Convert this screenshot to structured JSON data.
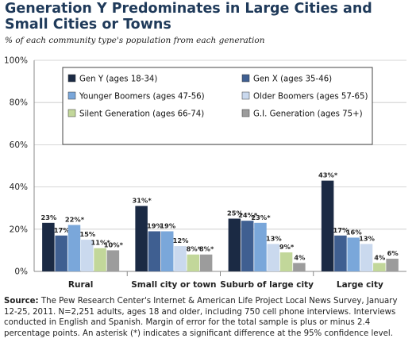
{
  "title": "Generation Y Predominates in Large Cities and Small Cities or Towns",
  "subtitle": "% of each community type's population from each generation",
  "source_label": "Source:",
  "source_text": "The Pew Research Center's Internet & American Life Project Local News Survey, January 12-25, 2011. N=2,251 adults, ages 18 and older, including 750 cell phone interviews. Interviews conducted in English and Spanish. Margin of error for the total sample is plus or minus 2.4 percentage points.  An asterisk (*) indicates a significant difference at the 95% confidence level.",
  "chart_data": {
    "type": "bar",
    "title": "Generation Y Predominates in Large Cities and Small Cities or Towns",
    "subtitle": "% of each community type's population from each generation",
    "categories": [
      "Rural",
      "Small city or town",
      "Suburb of large city",
      "Large city"
    ],
    "yticks": [
      "0%",
      "20%",
      "40%",
      "60%",
      "80%",
      "100%"
    ],
    "ylim": [
      0,
      100
    ],
    "grid": true,
    "legend_position": "top",
    "series": [
      {
        "name": "Gen Y (ages 18-34)",
        "color": "#1b2a44",
        "values": [
          23,
          31,
          25,
          43
        ],
        "labels": [
          "23%",
          "31%*",
          "25%",
          "43%*"
        ]
      },
      {
        "name": "Gen X (ages 35-46)",
        "color": "#3f5f91",
        "values": [
          17,
          19,
          24,
          17
        ],
        "labels": [
          "17%",
          "19%",
          "24%*",
          "17%"
        ]
      },
      {
        "name": "Younger Boomers (ages 47-56)",
        "color": "#7aa7da",
        "values": [
          22,
          19,
          23,
          16
        ],
        "labels": [
          "22%*",
          "19%",
          "23%*",
          "16%"
        ]
      },
      {
        "name": "Older Boomers (ages 57-65)",
        "color": "#cad9ee",
        "values": [
          15,
          12,
          13,
          13
        ],
        "labels": [
          "15%",
          "12%",
          "13%",
          "13%"
        ]
      },
      {
        "name": "Silent Generation (ages 66-74)",
        "color": "#c2d79a",
        "values": [
          11,
          8,
          9,
          4
        ],
        "labels": [
          "11%*",
          "8%*",
          "9%*",
          "4%"
        ]
      },
      {
        "name": "G.I. Generation (ages 75+)",
        "color": "#9c9c9c",
        "values": [
          10,
          8,
          4,
          6
        ],
        "labels": [
          "10%*",
          "8%*",
          "4%",
          "6%"
        ]
      }
    ]
  }
}
